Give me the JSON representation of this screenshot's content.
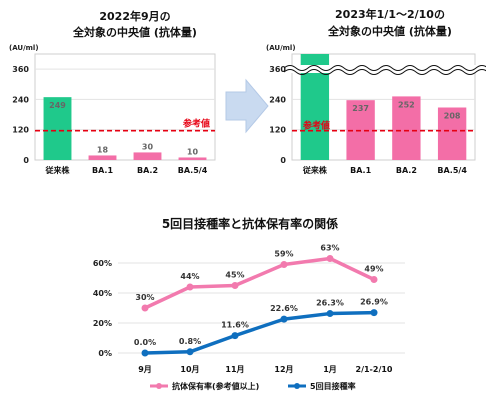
{
  "chart_data": [
    {
      "type": "bar",
      "title": "2022年9月の\n全対象の中央値 (抗体量)",
      "unit": "(AU/ml)",
      "categories": [
        "従来株",
        "BA.1",
        "BA.2",
        "BA.5/4"
      ],
      "values": [
        249,
        18,
        30,
        10
      ],
      "value_labels": [
        "249",
        "18",
        "30",
        "10"
      ],
      "yticks": [
        0,
        120,
        240,
        360
      ],
      "ylim": [
        0,
        420
      ],
      "reference": {
        "label": "参考値",
        "value": 116
      },
      "colors": [
        "#1fc98b",
        "#f36ea7",
        "#f36ea7",
        "#f36ea7"
      ]
    },
    {
      "type": "bar",
      "title": "2023年1/1〜2/10の\n全対象の中央値 (抗体量)",
      "unit": "(AU/ml)",
      "categories": [
        "従来株",
        "BA.1",
        "BA.2",
        "BA.5/4"
      ],
      "values": [
        420,
        237,
        252,
        208
      ],
      "value_labels": [
        "",
        "237",
        "252",
        "208"
      ],
      "yticks": [
        0,
        120,
        240,
        360
      ],
      "ylim": [
        0,
        420
      ],
      "axis_break": true,
      "reference": {
        "label": "参考値",
        "value": 116
      },
      "colors": [
        "#1fc98b",
        "#f36ea7",
        "#f36ea7",
        "#f36ea7"
      ]
    },
    {
      "type": "line",
      "title": "5回目接種率と抗体保有率の関係",
      "categories": [
        "9月",
        "10月",
        "11月",
        "12月",
        "1月",
        "2/1-2/10"
      ],
      "yticks": [
        "0%",
        "20%",
        "40%",
        "60%"
      ],
      "ylim": [
        0,
        70
      ],
      "series": [
        {
          "name": "抗体保有率(参考値以上)",
          "values": [
            30,
            44,
            45,
            59,
            63,
            49
          ],
          "labels": [
            "30%",
            "44%",
            "45%",
            "59%",
            "63%",
            "49%"
          ],
          "color": "#f27aae"
        },
        {
          "name": "5回目接種率",
          "values": [
            0.0,
            0.8,
            11.6,
            22.6,
            26.3,
            26.9
          ],
          "labels": [
            "0.0%",
            "0.8%",
            "11.6%",
            "22.6%",
            "26.3%",
            "26.9%"
          ],
          "color": "#0f6fbf"
        }
      ]
    }
  ]
}
